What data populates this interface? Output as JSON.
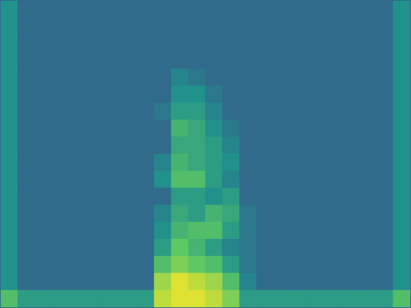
{
  "chart_data": {
    "type": "heatmap",
    "color": "viridis",
    "zlim": [
      0,
      1
    ],
    "xlim": [
      -0.5,
      23.5
    ],
    "ylim": [
      -0.5,
      17.5
    ],
    "tick_labels": false,
    "grid": false,
    "cells": [
      [
        0.5,
        0.35,
        0.35,
        0.35,
        0.35,
        0.35,
        0.35,
        0.35,
        0.35,
        0.35,
        0.35,
        0.35,
        0.35,
        0.35,
        0.35,
        0.35,
        0.35,
        0.35,
        0.35,
        0.35,
        0.35,
        0.35,
        0.35,
        0.5
      ],
      [
        0.5,
        0.35,
        0.35,
        0.35,
        0.35,
        0.35,
        0.35,
        0.35,
        0.35,
        0.35,
        0.35,
        0.35,
        0.35,
        0.35,
        0.35,
        0.35,
        0.35,
        0.35,
        0.35,
        0.35,
        0.35,
        0.35,
        0.35,
        0.5
      ],
      [
        0.5,
        0.35,
        0.35,
        0.35,
        0.35,
        0.35,
        0.35,
        0.35,
        0.35,
        0.35,
        0.35,
        0.35,
        0.35,
        0.35,
        0.35,
        0.35,
        0.35,
        0.35,
        0.35,
        0.35,
        0.35,
        0.35,
        0.35,
        0.5
      ],
      [
        0.5,
        0.35,
        0.35,
        0.35,
        0.35,
        0.35,
        0.35,
        0.35,
        0.35,
        0.35,
        0.35,
        0.35,
        0.35,
        0.35,
        0.35,
        0.35,
        0.35,
        0.35,
        0.35,
        0.35,
        0.35,
        0.35,
        0.35,
        0.5
      ],
      [
        0.5,
        0.35,
        0.35,
        0.35,
        0.35,
        0.35,
        0.35,
        0.35,
        0.35,
        0.35,
        0.45,
        0.4,
        0.35,
        0.35,
        0.35,
        0.35,
        0.35,
        0.35,
        0.35,
        0.35,
        0.35,
        0.35,
        0.35,
        0.5
      ],
      [
        0.5,
        0.35,
        0.35,
        0.35,
        0.35,
        0.35,
        0.35,
        0.35,
        0.35,
        0.35,
        0.5,
        0.5,
        0.4,
        0.35,
        0.35,
        0.35,
        0.35,
        0.35,
        0.35,
        0.35,
        0.35,
        0.35,
        0.35,
        0.5
      ],
      [
        0.5,
        0.35,
        0.35,
        0.35,
        0.35,
        0.35,
        0.35,
        0.35,
        0.35,
        0.4,
        0.55,
        0.55,
        0.45,
        0.35,
        0.35,
        0.35,
        0.35,
        0.35,
        0.35,
        0.35,
        0.35,
        0.35,
        0.35,
        0.5
      ],
      [
        0.5,
        0.35,
        0.35,
        0.35,
        0.35,
        0.35,
        0.35,
        0.35,
        0.35,
        0.35,
        0.65,
        0.6,
        0.5,
        0.4,
        0.35,
        0.35,
        0.35,
        0.35,
        0.35,
        0.35,
        0.35,
        0.35,
        0.35,
        0.5
      ],
      [
        0.5,
        0.35,
        0.35,
        0.35,
        0.35,
        0.35,
        0.35,
        0.35,
        0.35,
        0.35,
        0.6,
        0.6,
        0.55,
        0.45,
        0.35,
        0.35,
        0.35,
        0.35,
        0.35,
        0.35,
        0.35,
        0.35,
        0.35,
        0.5
      ],
      [
        0.5,
        0.35,
        0.35,
        0.35,
        0.35,
        0.35,
        0.35,
        0.35,
        0.35,
        0.45,
        0.65,
        0.6,
        0.55,
        0.5,
        0.35,
        0.35,
        0.35,
        0.35,
        0.35,
        0.35,
        0.35,
        0.35,
        0.35,
        0.5
      ],
      [
        0.5,
        0.35,
        0.35,
        0.35,
        0.35,
        0.35,
        0.35,
        0.35,
        0.35,
        0.5,
        0.7,
        0.7,
        0.55,
        0.45,
        0.35,
        0.35,
        0.35,
        0.35,
        0.35,
        0.35,
        0.35,
        0.35,
        0.35,
        0.5
      ],
      [
        0.5,
        0.35,
        0.35,
        0.35,
        0.35,
        0.35,
        0.35,
        0.35,
        0.35,
        0.35,
        0.55,
        0.55,
        0.5,
        0.55,
        0.35,
        0.35,
        0.35,
        0.35,
        0.35,
        0.35,
        0.35,
        0.35,
        0.35,
        0.5
      ],
      [
        0.5,
        0.35,
        0.35,
        0.35,
        0.35,
        0.35,
        0.35,
        0.35,
        0.35,
        0.45,
        0.6,
        0.55,
        0.65,
        0.6,
        0.4,
        0.35,
        0.35,
        0.35,
        0.35,
        0.35,
        0.35,
        0.35,
        0.35,
        0.5
      ],
      [
        0.5,
        0.35,
        0.35,
        0.35,
        0.35,
        0.35,
        0.35,
        0.35,
        0.35,
        0.5,
        0.65,
        0.7,
        0.7,
        0.55,
        0.4,
        0.35,
        0.35,
        0.35,
        0.35,
        0.35,
        0.35,
        0.35,
        0.35,
        0.5
      ],
      [
        0.5,
        0.35,
        0.35,
        0.35,
        0.35,
        0.35,
        0.35,
        0.35,
        0.35,
        0.55,
        0.75,
        0.65,
        0.55,
        0.45,
        0.4,
        0.35,
        0.35,
        0.35,
        0.35,
        0.35,
        0.35,
        0.35,
        0.35,
        0.5
      ],
      [
        0.5,
        0.35,
        0.35,
        0.35,
        0.35,
        0.35,
        0.35,
        0.35,
        0.35,
        0.7,
        0.8,
        0.75,
        0.7,
        0.55,
        0.4,
        0.35,
        0.35,
        0.35,
        0.35,
        0.35,
        0.35,
        0.35,
        0.35,
        0.5
      ],
      [
        0.5,
        0.35,
        0.35,
        0.35,
        0.35,
        0.35,
        0.35,
        0.35,
        0.35,
        0.85,
        0.95,
        0.9,
        0.85,
        0.7,
        0.45,
        0.35,
        0.35,
        0.35,
        0.35,
        0.35,
        0.35,
        0.35,
        0.35,
        0.5
      ],
      [
        0.7,
        0.55,
        0.55,
        0.55,
        0.55,
        0.55,
        0.55,
        0.55,
        0.55,
        0.9,
        0.95,
        0.95,
        0.9,
        0.8,
        0.55,
        0.55,
        0.55,
        0.55,
        0.55,
        0.55,
        0.55,
        0.55,
        0.55,
        0.7
      ]
    ]
  }
}
